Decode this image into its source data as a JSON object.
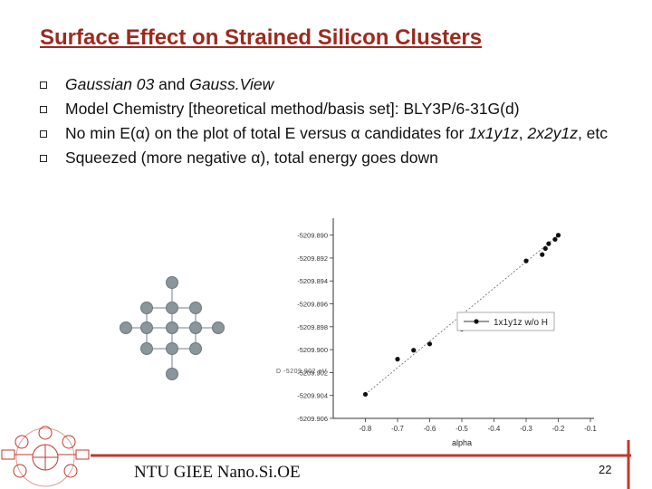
{
  "slide": {
    "title": "Surface Effect on Strained Silicon Clusters",
    "bullets": [
      {
        "parts": [
          {
            "text": "Gaussian 03",
            "italic": true
          },
          {
            "text": " and ",
            "italic": false
          },
          {
            "text": "Gauss.View",
            "italic": true
          }
        ]
      },
      {
        "parts": [
          {
            "text": "Model Chemistry [theoretical method/basis set]: BLY3P/6-31G(d)",
            "italic": false
          }
        ]
      },
      {
        "parts": [
          {
            "text": "No min E(α) on the plot of total E versus α candidates for ",
            "italic": false
          },
          {
            "text": "1x1y1z",
            "italic": true
          },
          {
            "text": ", ",
            "italic": false
          },
          {
            "text": "2x2y1z",
            "italic": true
          },
          {
            "text": ", etc",
            "italic": false
          }
        ]
      },
      {
        "parts": [
          {
            "text": "Squeezed (more negative α), total energy goes down",
            "italic": false
          }
        ]
      }
    ],
    "footer": "NTU GIEE Nano.Si.OE",
    "page_number": "22"
  },
  "colors": {
    "title": "#9c2a1e",
    "accent": "#c0392b",
    "atom": "#8a959c"
  },
  "chart_data": {
    "type": "scatter",
    "xlabel": "alpha",
    "ylabel": "",
    "xlim": [
      -0.9,
      -0.1
    ],
    "ylim": [
      -209.906,
      -209.889
    ],
    "x_ticks": [
      -0.8,
      -0.7,
      -0.6,
      -0.5,
      -0.4,
      -0.3,
      -0.2,
      -0.1
    ],
    "x_tick_labels": [
      "-0.8",
      "-0.7",
      "-0.6",
      "-0.5",
      "-0.4",
      "-0.3",
      "-0.2",
      "-0.1"
    ],
    "y_ticks": [
      -209.89,
      -209.892,
      -209.894,
      -209.896,
      -209.898,
      -209.9,
      -209.902,
      -209.904,
      -209.906
    ],
    "y_tick_labels": [
      "-5209.890",
      "-5209.892",
      "-5209.894",
      "-5209.896",
      "-5209.898",
      "-5209.900",
      "-5209.902",
      "-5209.904",
      "-5209.906"
    ],
    "series": [
      {
        "name": "1x1y1z w/o H",
        "x": [
          -0.8,
          -0.7,
          -0.65,
          -0.6,
          -0.5,
          -0.3,
          -0.25,
          -0.24,
          -0.23,
          -0.21,
          -0.2
        ],
        "y": [
          -209.9039,
          -209.90083,
          -209.90005,
          -209.8995,
          -209.8982,
          -209.89225,
          -209.8917,
          -209.89117,
          -209.89075,
          -209.89037,
          -209.89001
        ]
      }
    ],
    "legend": "right",
    "grid": false
  },
  "graphic": {
    "overlap_text": "D  -5209.902  eV"
  }
}
